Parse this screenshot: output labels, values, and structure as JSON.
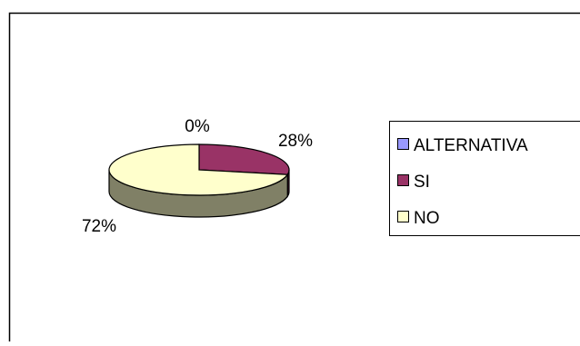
{
  "chart_data": {
    "type": "pie",
    "style": "3d",
    "series": [
      {
        "categories": [
          "ALTERNATIVA",
          "SI",
          "NO"
        ],
        "values": [
          0,
          28,
          72
        ],
        "labels": [
          "0%",
          "28%",
          "72%"
        ]
      }
    ],
    "colors": {
      "ALTERNATIVA": "#9999ff",
      "SI": "#993366",
      "NO": "#ffffcc"
    },
    "side_colors": {
      "ALTERNATIVA": "#4d4d80",
      "SI": "#4d1a33",
      "NO": "#808066"
    },
    "legend": {
      "placement": "right",
      "entries": [
        "ALTERNATIVA",
        "SI",
        "NO"
      ]
    }
  }
}
